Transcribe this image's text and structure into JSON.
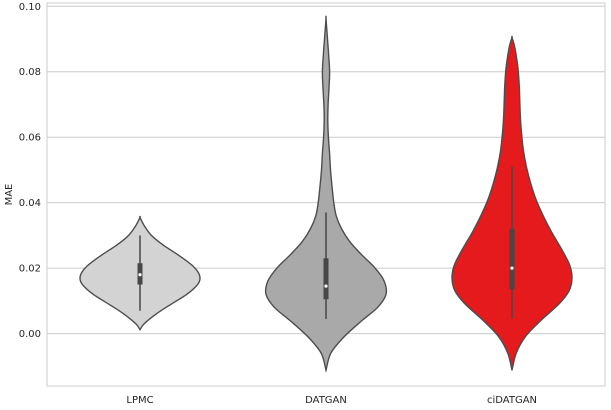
{
  "chart_data": {
    "type": "violin",
    "title": "",
    "xlabel": "",
    "ylabel": "MAE",
    "ylim": [
      -0.016,
      0.101
    ],
    "yticks": [
      "0.00",
      "0.02",
      "0.04",
      "0.06",
      "0.08",
      "0.10"
    ],
    "ytick_values": [
      0.0,
      0.02,
      0.04,
      0.06,
      0.08,
      0.1
    ],
    "grid": "horizontal",
    "categories": [
      "LPMC",
      "DATGAN",
      "ciDATGAN"
    ],
    "series": [
      {
        "category": "LPMC",
        "color": "#d3d3d3",
        "median": 0.018,
        "q1": 0.015,
        "q3": 0.0215,
        "whisker_low": 0.007,
        "whisker_high": 0.03,
        "min": 0.0012,
        "max": 0.0355,
        "density": [
          [
            0.0012,
            0.0
          ],
          [
            0.003,
            0.07
          ],
          [
            0.006,
            0.27
          ],
          [
            0.009,
            0.52
          ],
          [
            0.012,
            0.78
          ],
          [
            0.015,
            0.96
          ],
          [
            0.017,
            1.0
          ],
          [
            0.019,
            0.96
          ],
          [
            0.021,
            0.86
          ],
          [
            0.024,
            0.64
          ],
          [
            0.027,
            0.39
          ],
          [
            0.03,
            0.19
          ],
          [
            0.033,
            0.07
          ],
          [
            0.0355,
            0.0
          ]
        ]
      },
      {
        "category": "DATGAN",
        "color": "#a9a9a9",
        "median": 0.0145,
        "q1": 0.0105,
        "q3": 0.023,
        "whisker_low": 0.0045,
        "whisker_high": 0.037,
        "min": -0.0112,
        "max": 0.0962,
        "density": [
          [
            -0.0112,
            0.0
          ],
          [
            -0.006,
            0.08
          ],
          [
            -0.001,
            0.3
          ],
          [
            0.004,
            0.6
          ],
          [
            0.008,
            0.86
          ],
          [
            0.012,
            1.0
          ],
          [
            0.016,
            0.97
          ],
          [
            0.02,
            0.82
          ],
          [
            0.024,
            0.6
          ],
          [
            0.028,
            0.4
          ],
          [
            0.032,
            0.26
          ],
          [
            0.036,
            0.17
          ],
          [
            0.04,
            0.13
          ],
          [
            0.045,
            0.1
          ],
          [
            0.05,
            0.075
          ],
          [
            0.055,
            0.06
          ],
          [
            0.06,
            0.04
          ],
          [
            0.065,
            0.03
          ],
          [
            0.07,
            0.035
          ],
          [
            0.075,
            0.05
          ],
          [
            0.08,
            0.06
          ],
          [
            0.085,
            0.045
          ],
          [
            0.09,
            0.025
          ],
          [
            0.0962,
            0.0
          ]
        ]
      },
      {
        "category": "ciDATGAN",
        "color": "#e41a1c",
        "median": 0.02,
        "q1": 0.0135,
        "q3": 0.032,
        "whisker_low": 0.0045,
        "whisker_high": 0.051,
        "min": -0.0112,
        "max": 0.0905,
        "density": [
          [
            -0.0112,
            0.0
          ],
          [
            -0.006,
            0.07
          ],
          [
            -0.001,
            0.22
          ],
          [
            0.004,
            0.48
          ],
          [
            0.009,
            0.78
          ],
          [
            0.013,
            0.95
          ],
          [
            0.017,
            1.0
          ],
          [
            0.021,
            0.96
          ],
          [
            0.026,
            0.82
          ],
          [
            0.031,
            0.66
          ],
          [
            0.036,
            0.52
          ],
          [
            0.041,
            0.4
          ],
          [
            0.046,
            0.31
          ],
          [
            0.051,
            0.24
          ],
          [
            0.056,
            0.19
          ],
          [
            0.061,
            0.16
          ],
          [
            0.066,
            0.14
          ],
          [
            0.071,
            0.13
          ],
          [
            0.076,
            0.12
          ],
          [
            0.081,
            0.1
          ],
          [
            0.085,
            0.07
          ],
          [
            0.088,
            0.04
          ],
          [
            0.0905,
            0.0
          ]
        ]
      }
    ]
  }
}
